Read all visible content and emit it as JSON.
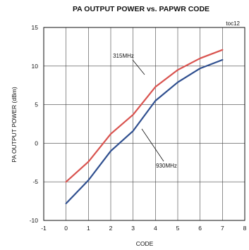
{
  "chart_data": {
    "type": "line",
    "title": "PA OUTPUT POWER vs. PAPWR CODE",
    "xlabel": "CODE",
    "ylabel": "PA OUTPUT POWER (dBm)",
    "corner_tag": "toc12",
    "xlim": [
      -1,
      8
    ],
    "ylim": [
      -10,
      15
    ],
    "xticks": [
      -1,
      0,
      1,
      2,
      3,
      4,
      5,
      6,
      7,
      8
    ],
    "yticks": [
      -10,
      -5,
      0,
      5,
      10,
      15
    ],
    "grid": true,
    "x": [
      0,
      1,
      2,
      3,
      4,
      5,
      6,
      7
    ],
    "series": [
      {
        "name": "315MHz",
        "color": "#d9534f",
        "values": [
          -5.0,
          -2.4,
          1.2,
          3.7,
          7.3,
          9.5,
          11.0,
          12.1
        ]
      },
      {
        "name": "930MHz",
        "color": "#2f4f8f",
        "values": [
          -7.8,
          -4.8,
          -1.0,
          1.6,
          5.5,
          7.9,
          9.7,
          10.8
        ]
      }
    ]
  }
}
